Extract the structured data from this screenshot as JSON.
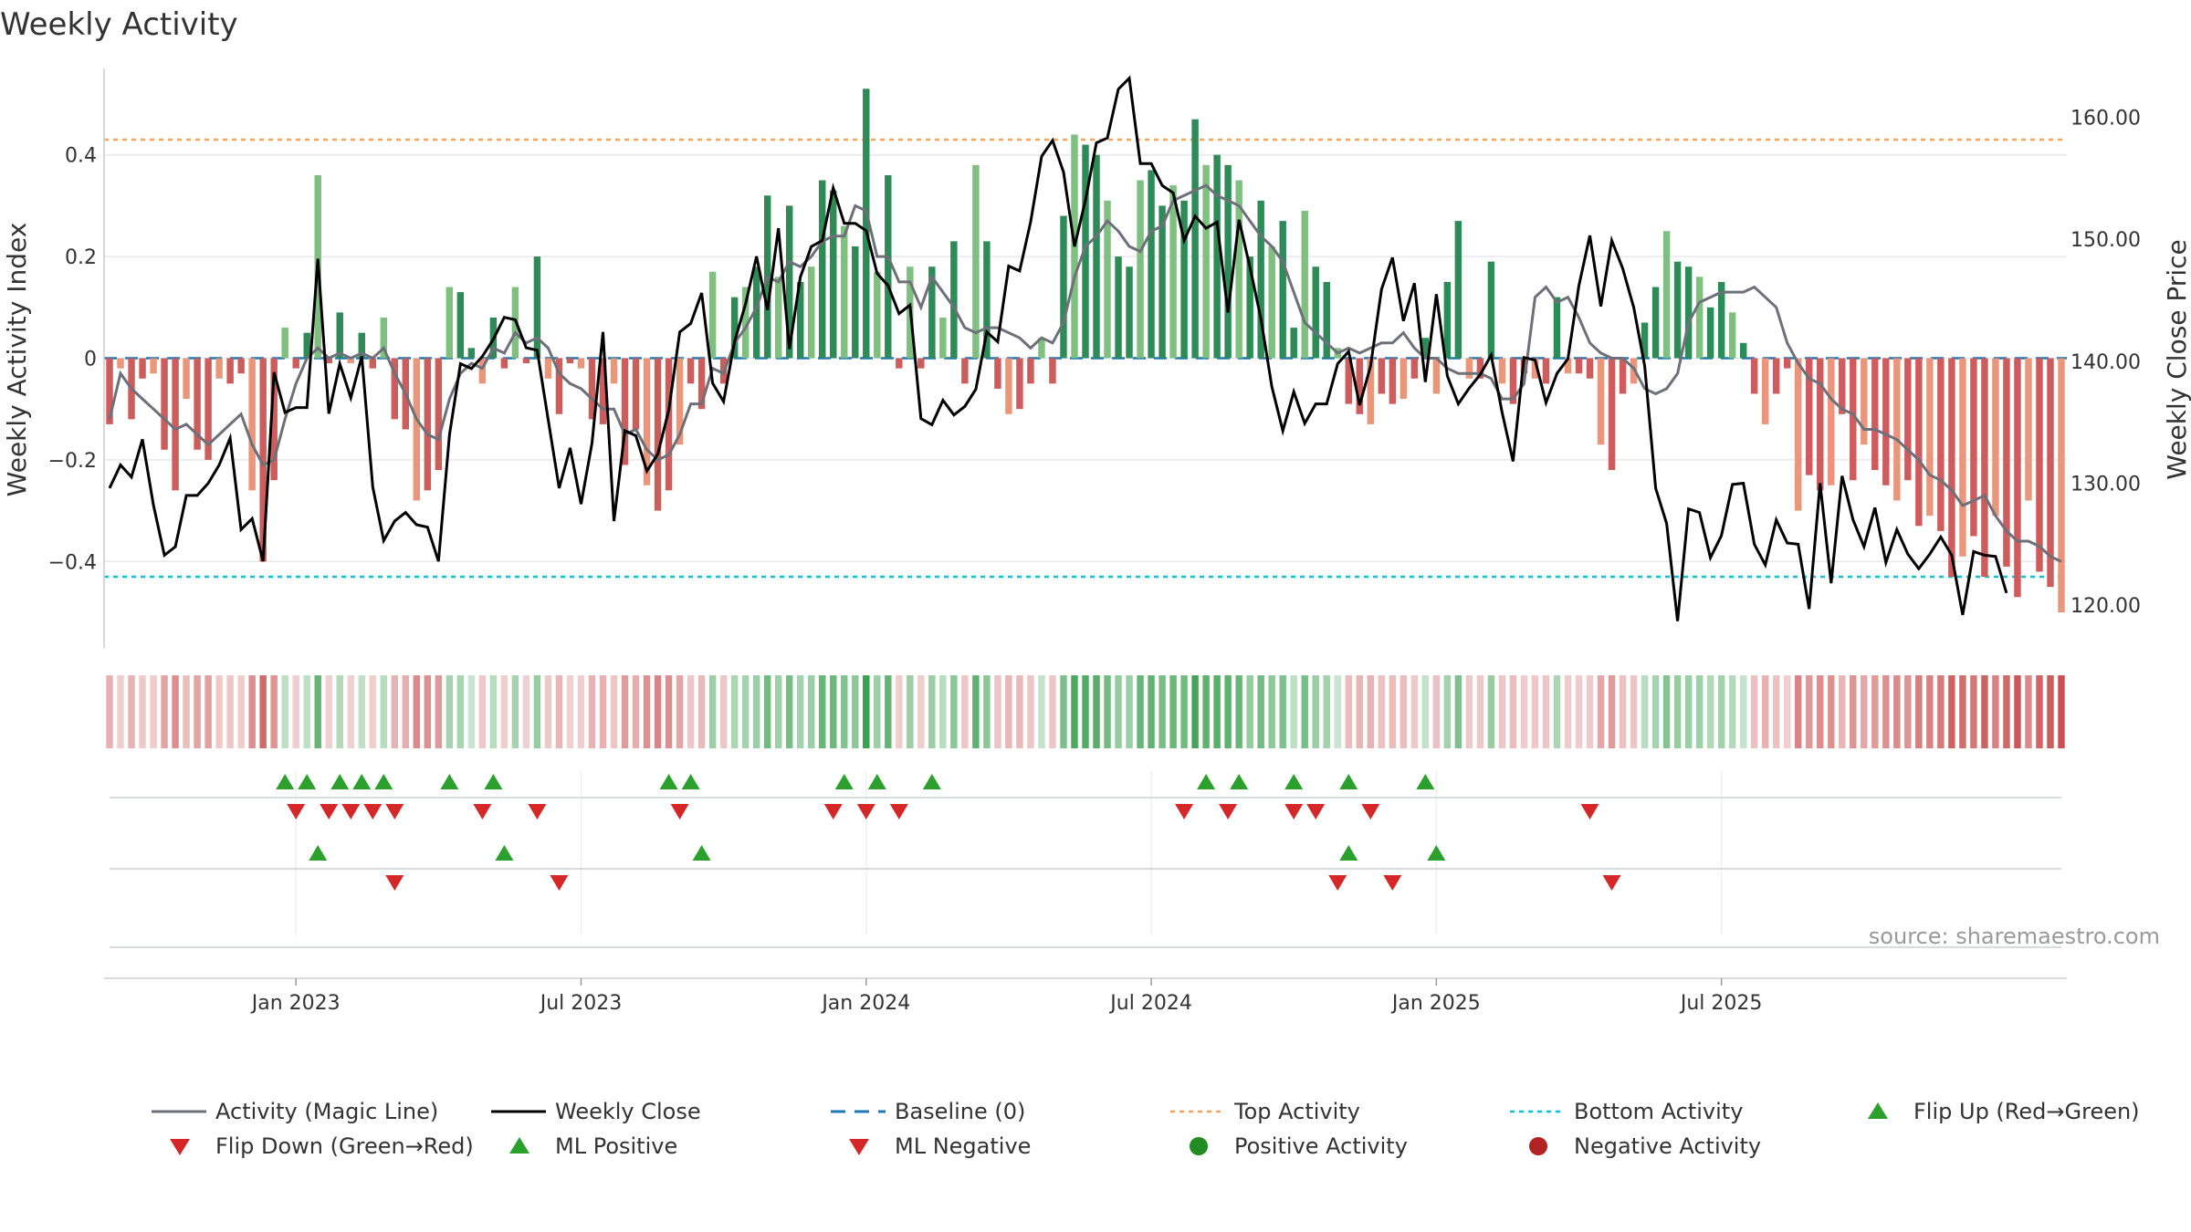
{
  "chart_data": {
    "type": "bar",
    "title": "Weekly Activity",
    "ylabel_left": "Weekly Activity Index",
    "ylabel_right": "Weekly Close Price",
    "ylim_left": [
      -0.57,
      0.57
    ],
    "ylim_right": [
      116.5,
      164.0
    ],
    "yticks_left": [
      {
        "value": 0.4,
        "label": "0.4"
      },
      {
        "value": 0.2,
        "label": "0.2"
      },
      {
        "value": 0,
        "label": "0"
      },
      {
        "value": -0.2,
        "label": "−0.2"
      },
      {
        "value": -0.4,
        "label": "−0.4"
      }
    ],
    "yticks_right": [
      {
        "value": 160,
        "label": "160.00"
      },
      {
        "value": 150,
        "label": "150.00"
      },
      {
        "value": 140,
        "label": "140.00"
      },
      {
        "value": 130,
        "label": "130.00"
      },
      {
        "value": 120,
        "label": "120.00"
      }
    ],
    "x_ticks": [
      {
        "week": 17,
        "label": "Jan 2023"
      },
      {
        "week": 43,
        "label": "Jul 2023"
      },
      {
        "week": 69,
        "label": "Jan 2024"
      },
      {
        "week": 95,
        "label": "Jul 2024"
      },
      {
        "week": 121,
        "label": "Jan 2025"
      },
      {
        "week": 147,
        "label": "Jul 2025"
      }
    ],
    "first_week": "2022-09-04",
    "top_activity": 0.43,
    "bottom_activity": -0.43,
    "baseline": 0,
    "activity": [
      -0.13,
      -0.02,
      -0.12,
      -0.04,
      -0.03,
      -0.18,
      -0.26,
      -0.08,
      -0.18,
      -0.2,
      -0.04,
      -0.05,
      -0.03,
      -0.26,
      -0.4,
      -0.24,
      0.06,
      -0.02,
      0.05,
      0.36,
      -0.01,
      0.09,
      -0.01,
      0.05,
      -0.02,
      0.08,
      -0.12,
      -0.14,
      -0.28,
      -0.26,
      -0.22,
      0.14,
      0.13,
      0.02,
      -0.05,
      0.08,
      -0.02,
      0.14,
      -0.01,
      0.2,
      -0.04,
      -0.11,
      -0.01,
      -0.02,
      -0.12,
      -0.13,
      -0.05,
      -0.21,
      -0.14,
      -0.25,
      -0.3,
      -0.26,
      -0.17,
      -0.05,
      -0.1,
      0.17,
      -0.05,
      0.12,
      0.14,
      0.18,
      0.32,
      0.16,
      0.3,
      0.15,
      0.18,
      0.35,
      0.33,
      0.26,
      0.22,
      0.53,
      0.17,
      0.36,
      -0.02,
      0.18,
      -0.02,
      0.18,
      0.08,
      0.23,
      -0.05,
      0.38,
      0.23,
      -0.06,
      -0.11,
      -0.1,
      -0.05,
      0.04,
      -0.05,
      0.28,
      0.44,
      0.42,
      0.4,
      0.31,
      0.2,
      0.18,
      0.35,
      0.37,
      0.3,
      0.34,
      0.31,
      0.47,
      0.38,
      0.4,
      0.38,
      0.35,
      0.2,
      0.31,
      0.22,
      0.27,
      0.06,
      0.29,
      0.18,
      0.15,
      0.02,
      -0.09,
      -0.11,
      -0.13,
      -0.07,
      -0.09,
      -0.08,
      -0.04,
      0.04,
      -0.07,
      0.15,
      0.27,
      -0.04,
      -0.04,
      0.19,
      -0.05,
      -0.09,
      -0.03,
      -0.04,
      -0.05,
      0.12,
      -0.03,
      -0.03,
      -0.04,
      -0.17,
      -0.22,
      -0.07,
      -0.05,
      0.07,
      0.14,
      0.25,
      0.19,
      0.18,
      0.16,
      0.1,
      0.15,
      0.09,
      0.03,
      -0.07,
      -0.13,
      -0.07,
      -0.02,
      -0.3,
      -0.23,
      -0.26,
      -0.25,
      -0.11,
      -0.24,
      -0.17,
      -0.22,
      -0.25,
      -0.28,
      -0.24,
      -0.33,
      -0.31,
      -0.34,
      -0.43,
      -0.39,
      -0.35,
      -0.43,
      -0.31,
      -0.41,
      -0.47,
      -0.28,
      -0.42,
      -0.45,
      -0.5
    ],
    "magic_line": [
      -0.12,
      -0.03,
      -0.06,
      -0.08,
      -0.1,
      -0.12,
      -0.14,
      -0.13,
      -0.15,
      -0.17,
      -0.15,
      -0.13,
      -0.11,
      -0.17,
      -0.21,
      -0.2,
      -0.12,
      -0.05,
      0.0,
      0.02,
      0.0,
      0.01,
      0.0,
      0.01,
      0.0,
      0.02,
      -0.03,
      -0.07,
      -0.12,
      -0.15,
      -0.16,
      -0.08,
      -0.03,
      -0.01,
      -0.02,
      0.02,
      0.01,
      0.05,
      0.03,
      0.04,
      0.02,
      -0.03,
      -0.05,
      -0.06,
      -0.08,
      -0.1,
      -0.1,
      -0.15,
      -0.14,
      -0.18,
      -0.2,
      -0.19,
      -0.15,
      -0.09,
      -0.09,
      -0.02,
      -0.03,
      0.03,
      0.06,
      0.1,
      0.16,
      0.15,
      0.19,
      0.18,
      0.2,
      0.23,
      0.24,
      0.24,
      0.3,
      0.29,
      0.2,
      0.2,
      0.15,
      0.15,
      0.1,
      0.16,
      0.13,
      0.1,
      0.06,
      0.05,
      0.06,
      0.06,
      0.05,
      0.04,
      0.02,
      0.04,
      0.03,
      0.07,
      0.16,
      0.22,
      0.24,
      0.27,
      0.25,
      0.22,
      0.21,
      0.25,
      0.26,
      0.31,
      0.32,
      0.33,
      0.34,
      0.32,
      0.31,
      0.3,
      0.27,
      0.24,
      0.22,
      0.19,
      0.13,
      0.07,
      0.05,
      0.03,
      0.01,
      0.02,
      0.01,
      0.02,
      0.03,
      0.03,
      0.05,
      0.02,
      0.0,
      0.0,
      -0.02,
      -0.03,
      -0.03,
      -0.03,
      -0.04,
      -0.08,
      -0.08,
      -0.05,
      0.12,
      0.14,
      0.11,
      0.12,
      0.08,
      0.03,
      0.01,
      0.0,
      0.0,
      -0.02,
      -0.06,
      -0.07,
      -0.06,
      -0.03,
      0.07,
      0.11,
      0.12,
      0.13,
      0.13,
      0.13,
      0.14,
      0.12,
      0.1,
      0.03,
      -0.01,
      -0.04,
      -0.05,
      -0.08,
      -0.1,
      -0.11,
      -0.14,
      -0.14,
      -0.15,
      -0.16,
      -0.18,
      -0.2,
      -0.23,
      -0.24,
      -0.26,
      -0.29,
      -0.28,
      -0.27,
      -0.31,
      -0.34,
      -0.36,
      -0.36,
      -0.37,
      -0.39,
      -0.4
    ],
    "weekly_close": [
      129.6,
      131.5,
      130.5,
      133.6,
      128.2,
      124.1,
      124.8,
      129.0,
      129.0,
      130.0,
      131.5,
      133.7,
      126.2,
      127.1,
      123.6,
      139.1,
      135.8,
      136.2,
      136.2,
      148.4,
      135.7,
      139.8,
      137.0,
      140.4,
      129.7,
      125.3,
      126.9,
      127.6,
      126.6,
      126.4,
      123.6,
      134.0,
      139.8,
      139.4,
      140.4,
      141.8,
      143.6,
      143.4,
      141.1,
      140.9,
      135.2,
      129.6,
      132.9,
      128.3,
      133.3,
      142.4,
      126.9,
      134.3,
      133.9,
      131.0,
      132.4,
      136.0,
      142.4,
      143.1,
      145.6,
      138.2,
      136.7,
      141.6,
      144.7,
      148.6,
      144.2,
      150.9,
      141.0,
      146.9,
      149.4,
      149.9,
      154.2,
      151.3,
      151.3,
      150.7,
      147.2,
      146.2,
      143.9,
      144.6,
      135.3,
      134.8,
      136.8,
      135.6,
      136.3,
      137.7,
      142.4,
      141.6,
      147.8,
      147.4,
      151.4,
      156.8,
      158.1,
      155.5,
      149.4,
      153.2,
      157.9,
      158.3,
      162.3,
      163.2,
      156.2,
      156.2,
      154.4,
      153.8,
      149.9,
      151.9,
      150.9,
      151.4,
      144.0,
      151.6,
      147.7,
      143.5,
      137.9,
      134.3,
      137.5,
      134.9,
      136.5,
      136.5,
      139.8,
      140.8,
      136.4,
      139.6,
      145.9,
      148.5,
      143.3,
      146.4,
      138.3,
      145.5,
      138.8,
      136.5,
      137.8,
      138.9,
      140.5,
      135.8,
      131.8,
      140.3,
      140.1,
      136.6,
      139.0,
      140.2,
      146.2,
      150.3,
      144.5,
      149.9,
      147.6,
      144.4,
      139.6,
      129.6,
      126.7,
      118.7,
      127.9,
      127.6,
      123.9,
      125.7,
      129.9,
      130.0,
      125.0,
      123.3,
      127.0,
      125.1,
      125.0,
      119.7,
      130.0,
      121.8,
      130.6,
      127.0,
      124.8,
      128.0,
      123.5,
      126.2,
      124.2,
      123.0,
      124.2,
      125.6,
      124.1,
      119.2,
      124.4,
      124.1,
      124.0,
      121.0
    ],
    "heat_strip_rgb_from_activity": true,
    "flip_up_weeks": [
      16,
      18,
      21,
      23,
      25,
      31,
      35,
      51,
      53,
      67,
      70,
      75,
      100,
      103,
      108,
      113,
      120
    ],
    "flip_down_weeks": [
      17,
      20,
      22,
      24,
      26,
      34,
      39,
      52,
      66,
      69,
      72,
      98,
      102,
      108,
      110,
      115,
      135
    ],
    "ml_positive_weeks": [
      19,
      36,
      54,
      113,
      121
    ],
    "ml_negative_weeks": [
      26,
      41,
      112,
      117,
      137
    ],
    "legend": [
      {
        "key": "magic_line",
        "label": "Activity (Magic Line)",
        "symbol": "line",
        "color": "#6e7079"
      },
      {
        "key": "weekly_close",
        "label": "Weekly Close",
        "symbol": "line",
        "color": "#000000"
      },
      {
        "key": "baseline",
        "label": "Baseline (0)",
        "symbol": "dashed-line",
        "color": "#1f77b4"
      },
      {
        "key": "top",
        "label": "Top Activity",
        "symbol": "dotted-line",
        "color": "#f4a460"
      },
      {
        "key": "bottom",
        "label": "Bottom Activity",
        "symbol": "dotted-line",
        "color": "#17becf"
      },
      {
        "key": "flip_up",
        "label": "Flip Up (Red→Green)",
        "symbol": "triangle-up",
        "color": "#2ca02c"
      },
      {
        "key": "flip_down",
        "label": "Flip Down (Green→Red)",
        "symbol": "triangle-down",
        "color": "#d62728"
      },
      {
        "key": "ml_pos",
        "label": "ML Positive",
        "symbol": "triangle-up",
        "color": "#2ca02c"
      },
      {
        "key": "ml_neg",
        "label": "ML Negative",
        "symbol": "triangle-down",
        "color": "#d62728"
      },
      {
        "key": "pos_act",
        "label": "Positive Activity",
        "symbol": "circle",
        "color": "#228b22"
      },
      {
        "key": "neg_act",
        "label": "Negative Activity",
        "symbol": "circle",
        "color": "#b22222"
      }
    ],
    "source": "source: sharemaestro.com"
  }
}
